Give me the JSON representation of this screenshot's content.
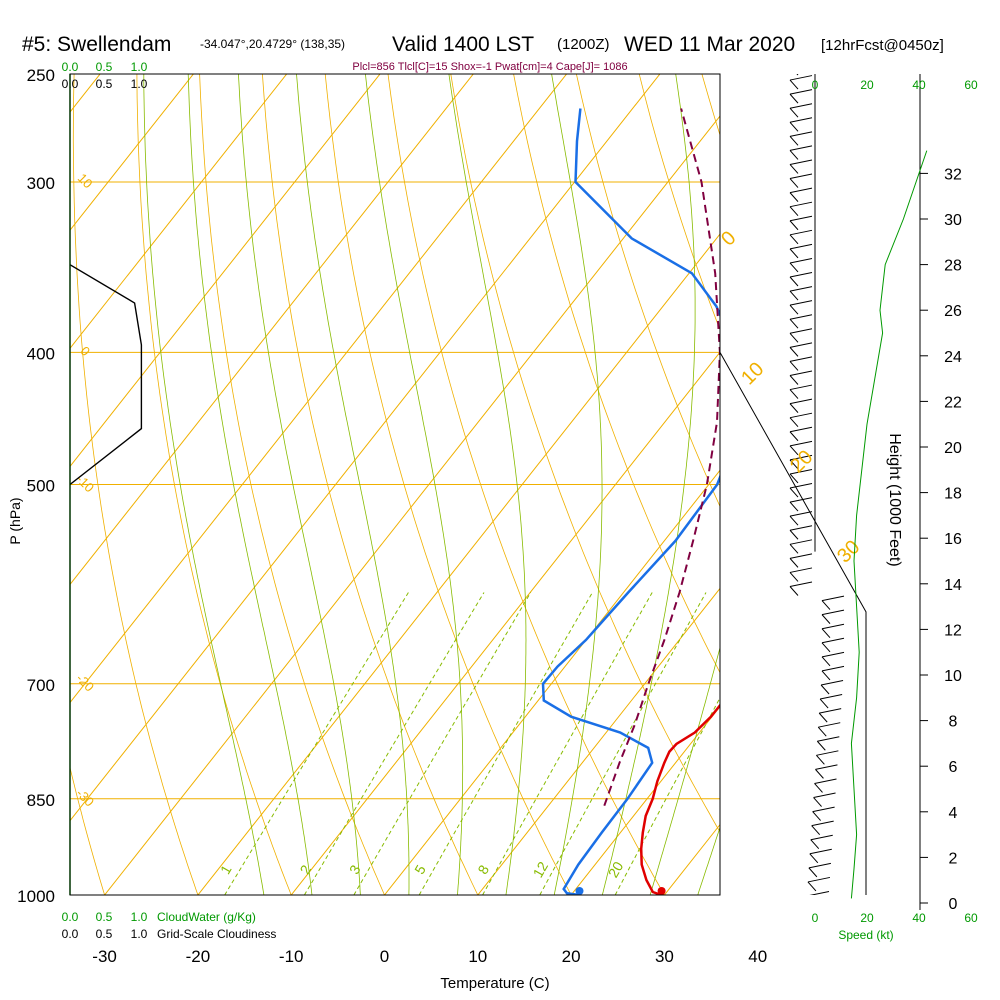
{
  "header": {
    "station": "#5: Swellendam",
    "coords": "-34.047°,20.4729° (138,35)",
    "valid": "Valid 1400 LST",
    "utc": "(1200Z)",
    "date": "WED 11 Mar 2020",
    "forecast": "[12hrFcst@0450z]",
    "indices": "Plcl=856 Tlcl[C]=15 Shox=-1 Pwat[cm]=4 Cape[J]= 1086"
  },
  "colors": {
    "isotherm": "#f0b000",
    "dry_adiabat": "#88bb00",
    "mixing_ratio": "#88bb00",
    "temperature": "#e00000",
    "dewpoint": "#1a6fe6",
    "parcel": "#800040",
    "green_text": "#009900",
    "cloud_line": "#009900"
  },
  "chart_data": {
    "type": "line",
    "title": "",
    "xlabel": "Temperature (C)",
    "ylabel": "P (hPa)",
    "xlim": [
      -34,
      45
    ],
    "ylim": [
      1000,
      250
    ],
    "pressure_ticks": [
      "250",
      "300",
      "400",
      "500",
      "700",
      "850",
      "1000"
    ],
    "temperature_ticks": [
      "-30",
      "-20",
      "-10",
      "0",
      "10",
      "20",
      "30",
      "40"
    ],
    "isotherm_labels": [
      "10",
      "0",
      "-10",
      "-20",
      "-30",
      "0",
      "10",
      "20",
      "30"
    ],
    "mixing_ratio_labels": [
      "1",
      "2",
      "3",
      "5",
      "8",
      "12",
      "20"
    ],
    "height_axis": {
      "label": "Height (1000 Feet)",
      "ticks": [
        "0",
        "2",
        "4",
        "6",
        "8",
        "10",
        "12",
        "14",
        "16",
        "18",
        "20",
        "22",
        "24",
        "26",
        "28",
        "30",
        "32"
      ]
    },
    "speed_axis": {
      "label": "Speed (kt)",
      "ticks": [
        "0",
        "20",
        "40",
        "60"
      ]
    },
    "cloud_axis": {
      "ticks": [
        "0.0",
        "0.5",
        "1.0"
      ]
    },
    "cloudwater_label": "CloudWater (g/Kg)",
    "cloudiness_label": "Grid-Scale Cloudiness",
    "series": [
      {
        "name": "temperature",
        "points": [
          {
            "p": 1000,
            "t": 29.7
          },
          {
            "p": 995,
            "t": 28.5
          },
          {
            "p": 975,
            "t": 26.8
          },
          {
            "p": 950,
            "t": 25.0
          },
          {
            "p": 925,
            "t": 23.6
          },
          {
            "p": 900,
            "t": 22.4
          },
          {
            "p": 875,
            "t": 21.3
          },
          {
            "p": 850,
            "t": 20.6
          },
          {
            "p": 825,
            "t": 19.6
          },
          {
            "p": 800,
            "t": 18.8
          },
          {
            "p": 785,
            "t": 18.4
          },
          {
            "p": 775,
            "t": 18.5
          },
          {
            "p": 760,
            "t": 19.5
          },
          {
            "p": 740,
            "t": 19.9
          },
          {
            "p": 720,
            "t": 19.9
          },
          {
            "p": 700,
            "t": 19.2
          },
          {
            "p": 650,
            "t": 17.2
          },
          {
            "p": 600,
            "t": 15.1
          },
          {
            "p": 550,
            "t": 13.1
          },
          {
            "p": 500,
            "t": 10.9
          },
          {
            "p": 450,
            "t": 8.1
          },
          {
            "p": 400,
            "t": 4.8
          },
          {
            "p": 350,
            "t": 0.6
          },
          {
            "p": 300,
            "t": -5.1
          },
          {
            "p": 265,
            "t": -10.6
          }
        ]
      },
      {
        "name": "dewpoint",
        "points": [
          {
            "p": 1000,
            "t": 20.9
          },
          {
            "p": 997,
            "t": 19.4
          },
          {
            "p": 990,
            "t": 18.7
          },
          {
            "p": 950,
            "t": 18.2
          },
          {
            "p": 900,
            "t": 18.0
          },
          {
            "p": 850,
            "t": 17.9
          },
          {
            "p": 800,
            "t": 17.5
          },
          {
            "p": 780,
            "t": 15.8
          },
          {
            "p": 760,
            "t": 11.5
          },
          {
            "p": 740,
            "t": 4.9
          },
          {
            "p": 720,
            "t": 0.6
          },
          {
            "p": 700,
            "t": -0.9
          },
          {
            "p": 680,
            "t": -0.8
          },
          {
            "p": 650,
            "t": 0.0
          },
          {
            "p": 600,
            "t": 0.5
          },
          {
            "p": 550,
            "t": 1.2
          },
          {
            "p": 500,
            "t": 0.9
          },
          {
            "p": 450,
            "t": -1.8
          },
          {
            "p": 400,
            "t": -8.2
          },
          {
            "p": 370,
            "t": -14.3
          },
          {
            "p": 350,
            "t": -19.7
          },
          {
            "p": 330,
            "t": -29.1
          },
          {
            "p": 300,
            "t": -39.9
          },
          {
            "p": 280,
            "t": -43.2
          },
          {
            "p": 265,
            "t": -45.6
          }
        ]
      },
      {
        "name": "parcel",
        "points": [
          {
            "p": 860,
            "t": 16.0
          },
          {
            "p": 800,
            "t": 14.0
          },
          {
            "p": 750,
            "t": 12.4
          },
          {
            "p": 700,
            "t": 10.4
          },
          {
            "p": 650,
            "t": 8.4
          },
          {
            "p": 600,
            "t": 6.0
          },
          {
            "p": 550,
            "t": 3.1
          },
          {
            "p": 500,
            "t": -0.2
          },
          {
            "p": 450,
            "t": -4.4
          },
          {
            "p": 400,
            "t": -10.0
          },
          {
            "p": 350,
            "t": -17.2
          },
          {
            "p": 300,
            "t": -26.4
          },
          {
            "p": 265,
            "t": -34.8
          }
        ]
      }
    ],
    "surface_temperature_marker": 29.7,
    "surface_dewpoint_marker": 20.9,
    "cloudiness_profile": [
      {
        "p": 345,
        "v": 0.0
      },
      {
        "p": 368,
        "v": 0.95
      },
      {
        "p": 395,
        "v": 1.05
      },
      {
        "p": 455,
        "v": 1.05
      },
      {
        "p": 500,
        "v": 0.0
      }
    ],
    "wind_speed_profile": [
      {
        "h": 0.2,
        "kt": 14
      },
      {
        "h": 1.5,
        "kt": 15
      },
      {
        "h": 3.0,
        "kt": 16
      },
      {
        "h": 5.0,
        "kt": 15
      },
      {
        "h": 7.0,
        "kt": 14
      },
      {
        "h": 9.0,
        "kt": 16
      },
      {
        "h": 11.0,
        "kt": 17
      },
      {
        "h": 13.0,
        "kt": 16
      },
      {
        "h": 15.0,
        "kt": 15
      },
      {
        "h": 17.0,
        "kt": 16
      },
      {
        "h": 19.0,
        "kt": 18
      },
      {
        "h": 21.0,
        "kt": 20
      },
      {
        "h": 23.0,
        "kt": 23
      },
      {
        "h": 25.0,
        "kt": 26
      },
      {
        "h": 26.0,
        "kt": 25
      },
      {
        "h": 28.0,
        "kt": 27
      },
      {
        "h": 30.0,
        "kt": 34
      },
      {
        "h": 32.0,
        "kt": 40
      },
      {
        "h": 33.0,
        "kt": 43
      }
    ]
  }
}
